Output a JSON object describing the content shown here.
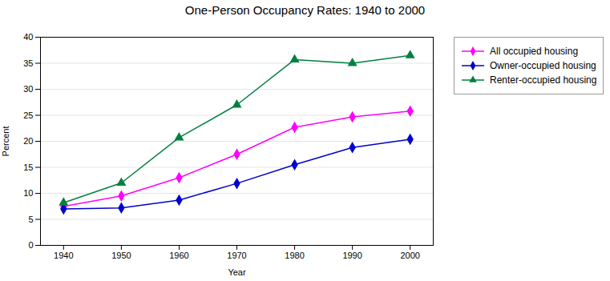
{
  "chart_data": {
    "type": "line",
    "title": "One-Person Occupancy Rates:  1940 to 2000",
    "xlabel": "Year",
    "ylabel": "Percent",
    "x": [
      1940,
      1950,
      1960,
      1970,
      1980,
      1990,
      2000
    ],
    "series": [
      {
        "name": "All occupied housing",
        "color": "#FF00FF",
        "marker": "diamond",
        "values": [
          7.5,
          9.5,
          13.0,
          17.5,
          22.7,
          24.7,
          25.8
        ]
      },
      {
        "name": "Owner-occupied housing",
        "color": "#0000CC",
        "marker": "diamond",
        "values": [
          7.0,
          7.2,
          8.7,
          11.9,
          15.5,
          18.8,
          20.4
        ]
      },
      {
        "name": "Renter-occupied housing",
        "color": "#008040",
        "marker": "triangle",
        "values": [
          8.2,
          12.0,
          20.7,
          27.0,
          35.7,
          35.0,
          36.5
        ]
      }
    ],
    "xlim": [
      1936,
      2004
    ],
    "xticks": [
      1940,
      1950,
      1960,
      1970,
      1980,
      1990,
      2000
    ],
    "ylim": [
      0,
      40
    ],
    "yticks": [
      0,
      5,
      10,
      15,
      20,
      25,
      30,
      35,
      40
    ],
    "grid": true,
    "legend": "right"
  }
}
